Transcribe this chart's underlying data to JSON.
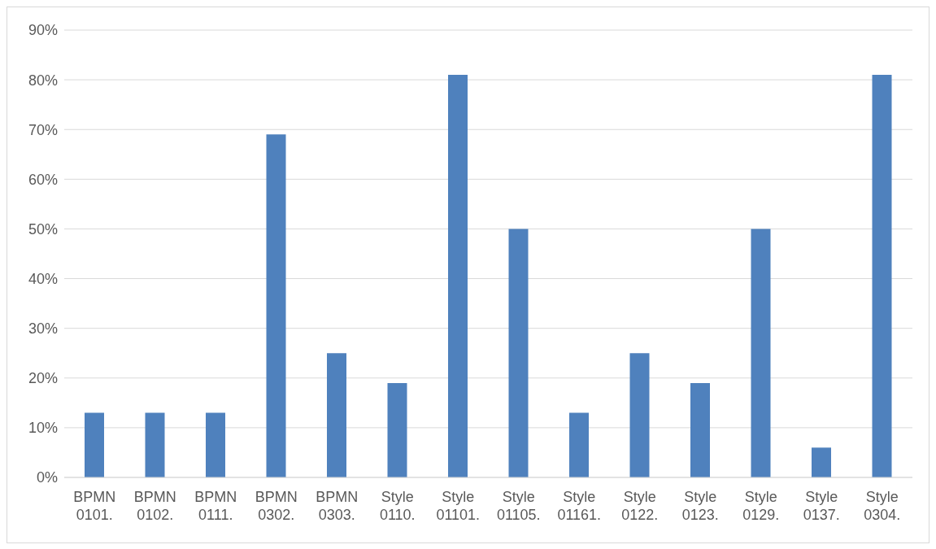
{
  "chart_data": {
    "type": "bar",
    "categories": [
      "BPMN 0101.",
      "BPMN 0102.",
      "BPMN 0111.",
      "BPMN 0302.",
      "BPMN 0303.",
      "Style 0110.",
      "Style 01101.",
      "Style 01105.",
      "Style 01161.",
      "Style 0122.",
      "Style 0123.",
      "Style 0129.",
      "Style 0137.",
      "Style 0304."
    ],
    "values": [
      13,
      13,
      13,
      69,
      25,
      19,
      81,
      50,
      13,
      25,
      19,
      50,
      6,
      81
    ],
    "color": "#4f81bd",
    "ylim": [
      0,
      90
    ],
    "yticks": [
      {
        "value": 0,
        "label": "0%"
      },
      {
        "value": 10,
        "label": "10%"
      },
      {
        "value": 20,
        "label": "20%"
      },
      {
        "value": 30,
        "label": "30%"
      },
      {
        "value": 40,
        "label": "40%"
      },
      {
        "value": 50,
        "label": "50%"
      },
      {
        "value": 60,
        "label": "60%"
      },
      {
        "value": 70,
        "label": "70%"
      },
      {
        "value": 80,
        "label": "80%"
      },
      {
        "value": 90,
        "label": "90%"
      }
    ],
    "grid": "y"
  }
}
